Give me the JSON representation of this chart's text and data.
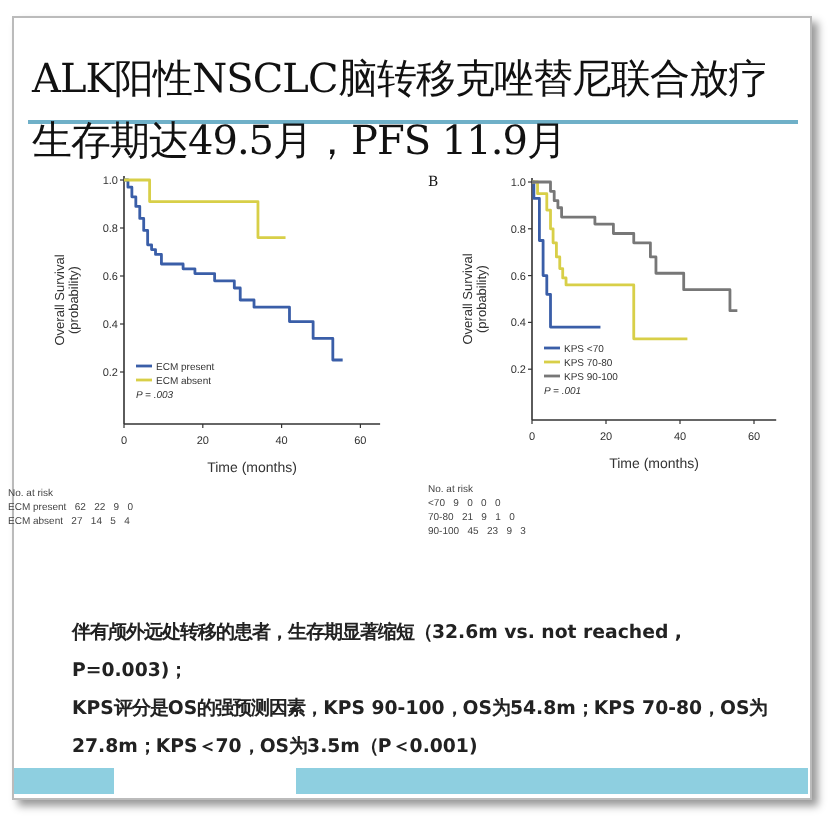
{
  "chart_data": [
    {
      "type": "step",
      "title": "ALK阳性NSCLC脑转移克唑替尼联合放疗生存期达49.5月，PFS 11.9月",
      "xlabel": "Time (months)",
      "ylabel": "Overall Survival (probability)",
      "xlim": [
        0,
        65
      ],
      "ylim": [
        0,
        1
      ],
      "xticks": [
        0,
        20,
        40,
        60
      ],
      "yticks": [
        {
          "value": 0.2,
          "label": "0.2"
        },
        {
          "value": 0.4,
          "label": "0.4"
        },
        {
          "value": 0.6,
          "label": "0.6"
        },
        {
          "value": 0.8,
          "label": "0.8"
        },
        {
          "value": 1,
          "label": "1.0"
        }
      ],
      "legend": "bottom left",
      "series": [
        {
          "name": "ECM present",
          "color": "#3a5ea8",
          "x": [
            0,
            1,
            2,
            3,
            4,
            5,
            6,
            7,
            8,
            9.5,
            15,
            18,
            23,
            28,
            29.5,
            33,
            42,
            48,
            53,
            55.5
          ],
          "values": [
            1,
            0.97,
            0.93,
            0.89,
            0.84,
            0.79,
            0.73,
            0.71,
            0.69,
            0.65,
            0.63,
            0.61,
            0.58,
            0.55,
            0.5,
            0.47,
            0.41,
            0.34,
            0.25,
            0.25
          ]
        },
        {
          "name": "ECM absent",
          "color": "#d8cf48",
          "x": [
            0,
            6.5,
            34,
            41
          ],
          "values": [
            1,
            0.91,
            0.76,
            0.76
          ]
        }
      ],
      "annotations": [
        "P = .003",
        "No. at risk",
        "ECM present   62   22   9   0",
        "ECM absent   27   14   5   4"
      ]
    },
    {
      "type": "step",
      "title": "B",
      "xlabel": "Time (months)",
      "ylabel": "Overall Survival (probability)",
      "xlim": [
        0,
        66
      ],
      "ylim": [
        0,
        1
      ],
      "xticks": [
        0,
        20,
        40,
        60
      ],
      "yticks": [
        {
          "value": 0.2,
          "label": "0.2"
        },
        {
          "value": 0.4,
          "label": "0.4"
        },
        {
          "value": 0.6,
          "label": "0.6"
        },
        {
          "value": 0.8,
          "label": "0.8"
        },
        {
          "value": 1,
          "label": "1.0"
        }
      ],
      "legend": "bottom left",
      "series": [
        {
          "name": "KPS <70",
          "color": "#3a5ea8",
          "x": [
            0,
            0.5,
            2,
            3,
            4,
            5,
            18.5
          ],
          "values": [
            1,
            0.93,
            0.75,
            0.6,
            0.52,
            0.38,
            0.38
          ]
        },
        {
          "name": "KPS 70-80",
          "color": "#d8cf48",
          "x": [
            0,
            1.5,
            4,
            5,
            5.7,
            6.6,
            7.5,
            8.3,
            9.2,
            27.5,
            42
          ],
          "values": [
            1,
            0.95,
            0.88,
            0.8,
            0.74,
            0.68,
            0.63,
            0.59,
            0.56,
            0.33,
            0.33
          ]
        },
        {
          "name": "KPS 90-100",
          "color": "#777777",
          "x": [
            0,
            5,
            6,
            7,
            8,
            17,
            22,
            27.5,
            32,
            33.5,
            41,
            53.5,
            55.5
          ],
          "values": [
            1,
            0.96,
            0.92,
            0.89,
            0.85,
            0.82,
            0.78,
            0.74,
            0.68,
            0.61,
            0.54,
            0.45,
            0.45
          ]
        }
      ],
      "annotations": [
        "P = .001",
        "No. at risk",
        "<70   9   0   0   0",
        "70-80   21   9   1   0",
        "90-100   45   23   9   3"
      ]
    },
    {
      "type": "other",
      "annotations": [
        "伴有颅外远处转移的患者，生存期显著缩短（32.6m vs. not reached , P=0.003)；",
        "KPS评分是OS的强预测因素，KPS 90-100，OS为54.8m；KPS 70-80，OS为27.8m；KPS＜70，OS为3.5m（P＜0.001)"
      ]
    }
  ]
}
